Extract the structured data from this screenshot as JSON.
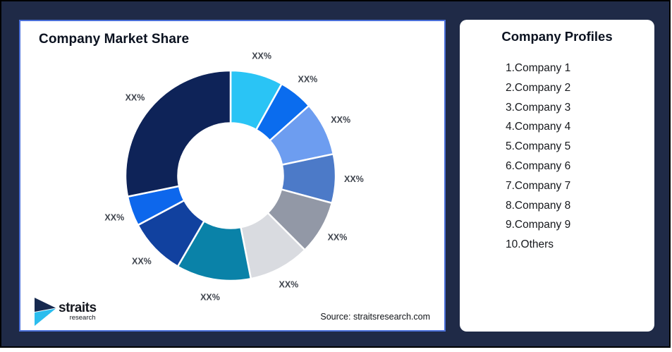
{
  "frame": {
    "bg_color": "#1F2A47",
    "border_color": "#000000"
  },
  "market_card": {
    "title": "Company Market Share",
    "source": "Source: straitsresearch.com",
    "border_color": "#4A6FD9"
  },
  "logo": {
    "brand": "straits",
    "sub_brand": "research",
    "icon_navy": "#16294F",
    "icon_cyan": "#2BBDEE"
  },
  "profiles_card": {
    "title": "Company Profiles",
    "items": [
      "1.Company 1",
      "2.Company 2",
      "3.Company 3",
      "4.Company 4",
      "5.Company 5",
      "6.Company 6",
      "7.Company 7",
      "8.Company 8",
      "9.Company 9",
      "10.Others"
    ]
  },
  "chart_data": {
    "type": "pie",
    "variant": "donut",
    "title": "Company Market Share",
    "start_angle_deg": 0,
    "direction": "clockwise",
    "inner_radius_ratio": 0.5,
    "outer_radius_px": 149,
    "label_radius_px": 175,
    "gap_color": "#FFFFFF",
    "label_color": "#3F444D",
    "slices": [
      {
        "label": "XX%",
        "value_pct": 8.1,
        "color": "#2AC4F5"
      },
      {
        "label": "XX%",
        "value_pct": 5.3,
        "color": "#0A6CEE"
      },
      {
        "label": "XX%",
        "value_pct": 8.3,
        "color": "#6D9DF0"
      },
      {
        "label": "XX%",
        "value_pct": 7.5,
        "color": "#4C7AC8"
      },
      {
        "label": "XX%",
        "value_pct": 8.3,
        "color": "#9298A6"
      },
      {
        "label": "XX%",
        "value_pct": 9.4,
        "color": "#D9DBE0"
      },
      {
        "label": "XX%",
        "value_pct": 11.5,
        "color": "#0A82A8"
      },
      {
        "label": "XX%",
        "value_pct": 8.8,
        "color": "#11419F"
      },
      {
        "label": "XX%",
        "value_pct": 4.6,
        "color": "#0D67EC"
      },
      {
        "label": "XX%",
        "value_pct": 28.2,
        "color": "#0E2358"
      }
    ]
  }
}
